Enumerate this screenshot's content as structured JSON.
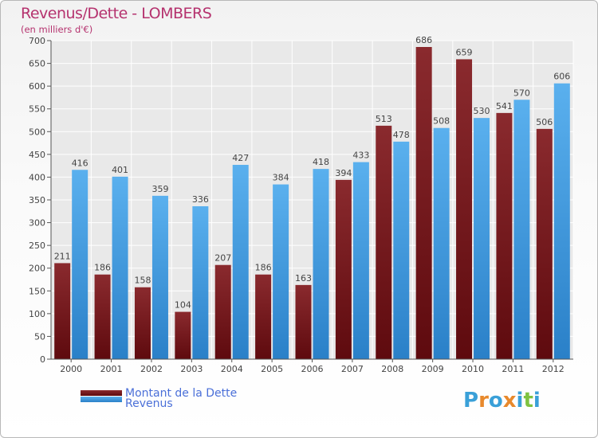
{
  "chart_data": {
    "type": "bar",
    "title": "Revenus/Dette - LOMBERS",
    "subtitle": "(en milliers d'€)",
    "categories": [
      "2000",
      "2001",
      "2002",
      "2003",
      "2004",
      "2005",
      "2006",
      "2007",
      "2008",
      "2009",
      "2010",
      "2011",
      "2012"
    ],
    "series": [
      {
        "name": "Montant de la Dette",
        "color": "#7a1e22",
        "values": [
          211,
          186,
          158,
          104,
          207,
          186,
          163,
          394,
          513,
          686,
          659,
          541,
          506
        ]
      },
      {
        "name": "Revenus",
        "color": "#4aa3e6",
        "values": [
          416,
          401,
          359,
          336,
          427,
          384,
          418,
          433,
          478,
          508,
          530,
          570,
          606
        ]
      }
    ],
    "ylim": [
      0,
      700
    ],
    "yticks": [
      0,
      50,
      100,
      150,
      200,
      250,
      300,
      350,
      400,
      450,
      500,
      550,
      600,
      650,
      700
    ],
    "grid": true,
    "legend": "bottom-left"
  },
  "logo": {
    "text": "Proxiti",
    "letters": [
      "P",
      "r",
      "o",
      "x",
      "i",
      "t",
      "i"
    ],
    "colors": [
      "#3aa0d8",
      "#e8892c",
      "#3aa0d8",
      "#e8892c",
      "#3aa0d8",
      "#7fc241",
      "#3aa0d8"
    ]
  }
}
